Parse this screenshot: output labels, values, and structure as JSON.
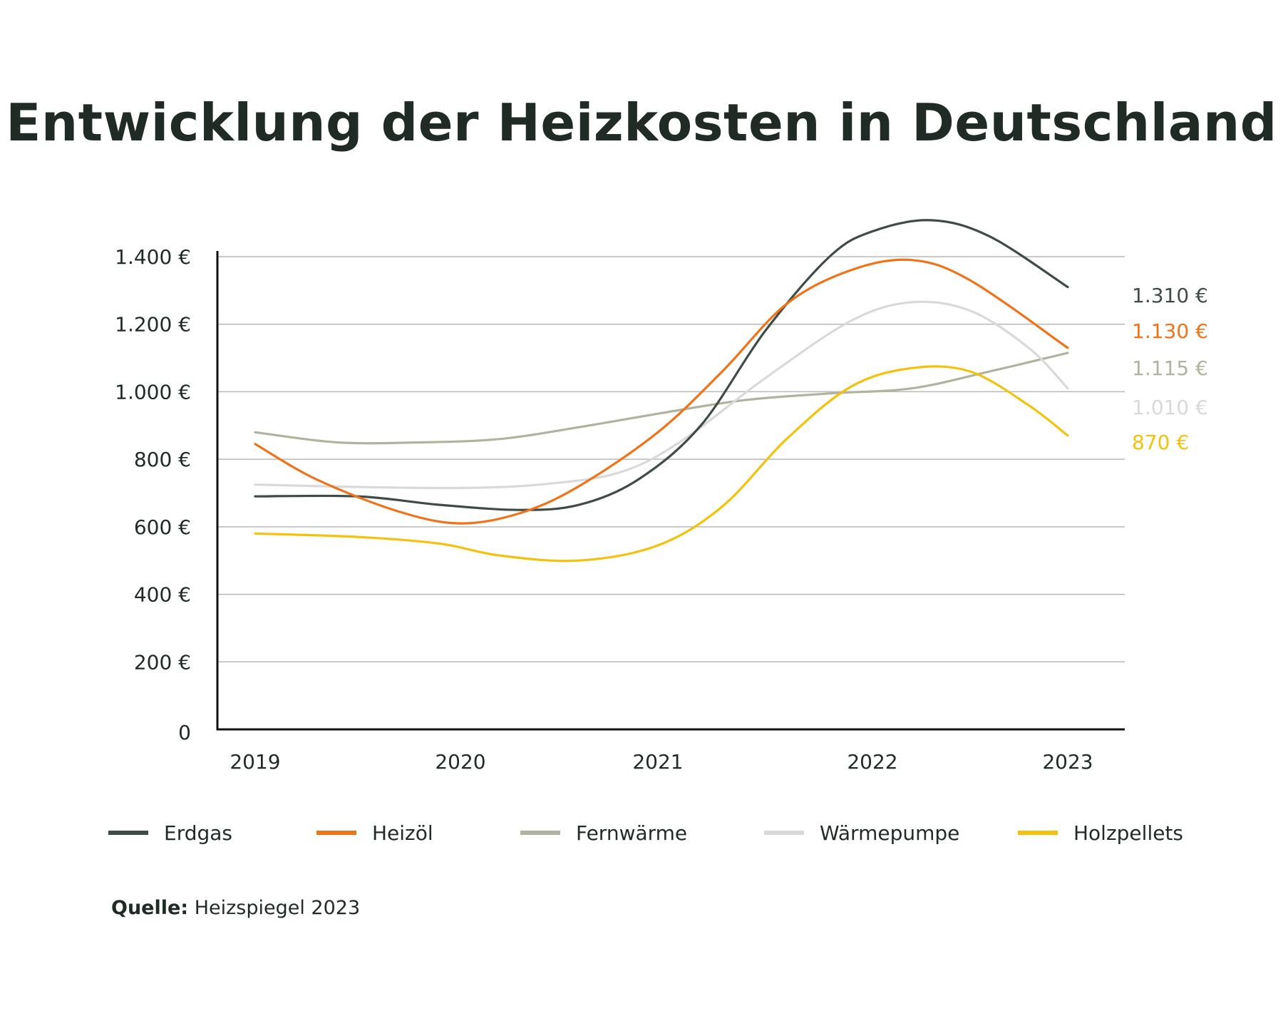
{
  "title": "Entwicklung der Heizkosten in Deutschland",
  "chart_data": {
    "type": "line",
    "title": "Entwicklung der Heizkosten in Deutschland",
    "xlabel": "",
    "ylabel": "",
    "x": [
      "2019",
      "2020",
      "2021",
      "2022",
      "2023"
    ],
    "ylim": [
      0,
      1400
    ],
    "yticks": [
      0,
      200,
      400,
      600,
      800,
      1000,
      1200,
      1400
    ],
    "ytick_labels": [
      "0",
      "200 €",
      "400 €",
      "600 €",
      "800 €",
      "1.000 €",
      "1.200 €",
      "1.400 €"
    ],
    "grid": true,
    "legend_position": "bottom",
    "series": [
      {
        "name": "Erdgas",
        "color": "#3f4c45",
        "values": [
          690,
          655,
          760,
          1440,
          1310
        ],
        "end_label": "1.310 €",
        "curve": [
          [
            2019,
            690
          ],
          [
            2019.5,
            690
          ],
          [
            2019.9,
            665
          ],
          [
            2020.3,
            650
          ],
          [
            2020.6,
            665
          ],
          [
            2020.9,
            740
          ],
          [
            2021.2,
            900
          ],
          [
            2021.5,
            1180
          ],
          [
            2021.8,
            1400
          ],
          [
            2022.0,
            1475
          ],
          [
            2022.3,
            1508
          ],
          [
            2022.6,
            1460
          ],
          [
            2023.0,
            1310
          ]
        ]
      },
      {
        "name": "Heizöl",
        "color": "#f07219",
        "values": [
          845,
          610,
          880,
          1380,
          1130
        ],
        "end_label": "1.130 €",
        "curve": [
          [
            2019,
            845
          ],
          [
            2019.3,
            740
          ],
          [
            2019.7,
            645
          ],
          [
            2020.0,
            610
          ],
          [
            2020.3,
            640
          ],
          [
            2020.6,
            720
          ],
          [
            2021.0,
            880
          ],
          [
            2021.3,
            1060
          ],
          [
            2021.6,
            1260
          ],
          [
            2021.9,
            1360
          ],
          [
            2022.2,
            1390
          ],
          [
            2022.5,
            1330
          ],
          [
            2023.0,
            1130
          ]
        ]
      },
      {
        "name": "Fernwärme",
        "color": "#b1b2a0",
        "values": [
          880,
          850,
          935,
          1000,
          1115
        ],
        "end_label": "1.115 €",
        "curve": [
          [
            2019,
            880
          ],
          [
            2019.4,
            850
          ],
          [
            2019.8,
            850
          ],
          [
            2020.2,
            860
          ],
          [
            2020.6,
            895
          ],
          [
            2021.0,
            935
          ],
          [
            2021.4,
            975
          ],
          [
            2021.8,
            995
          ],
          [
            2022.2,
            1010
          ],
          [
            2022.6,
            1060
          ],
          [
            2023.0,
            1115
          ]
        ]
      },
      {
        "name": "Wärmepumpe",
        "color": "#d9d9d9",
        "values": [
          725,
          720,
          790,
          1230,
          1010
        ],
        "end_label": "1.010 €",
        "curve": [
          [
            2019,
            725
          ],
          [
            2019.5,
            718
          ],
          [
            2020.0,
            715
          ],
          [
            2020.4,
            725
          ],
          [
            2020.8,
            760
          ],
          [
            2021.1,
            850
          ],
          [
            2021.5,
            1040
          ],
          [
            2021.9,
            1210
          ],
          [
            2022.2,
            1265
          ],
          [
            2022.5,
            1240
          ],
          [
            2022.8,
            1130
          ],
          [
            2023.0,
            1010
          ]
        ]
      },
      {
        "name": "Holzpellets",
        "color": "#f4c20d",
        "values": [
          580,
          550,
          545,
          1040,
          870
        ],
        "end_label": "870 €",
        "curve": [
          [
            2019,
            580
          ],
          [
            2019.5,
            570
          ],
          [
            2019.9,
            550
          ],
          [
            2020.2,
            515
          ],
          [
            2020.6,
            500
          ],
          [
            2021.0,
            545
          ],
          [
            2021.3,
            660
          ],
          [
            2021.6,
            860
          ],
          [
            2021.9,
            1015
          ],
          [
            2022.2,
            1070
          ],
          [
            2022.5,
            1060
          ],
          [
            2022.8,
            960
          ],
          [
            2023.0,
            870
          ]
        ]
      }
    ]
  },
  "source": {
    "label": "Quelle:",
    "text": " Heizspiegel 2023"
  }
}
